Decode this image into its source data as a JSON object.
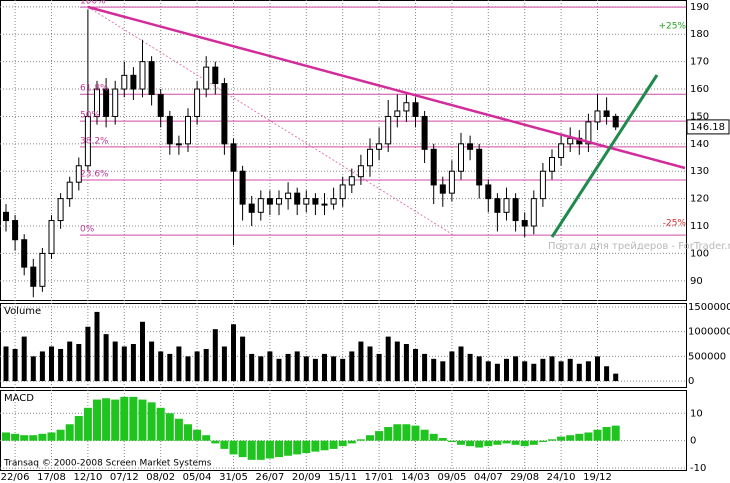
{
  "chart_data": {
    "type": "candlestick",
    "categories": [
      null,
      "22/06",
      null,
      null,
      null,
      "17/08",
      null,
      null,
      null,
      "12/10",
      null,
      null,
      null,
      "07/12",
      null,
      null,
      null,
      "08/02",
      null,
      null,
      null,
      "05/04",
      null,
      null,
      null,
      "31/05",
      null,
      null,
      null,
      "26/07",
      null,
      null,
      null,
      "20/09",
      null,
      null,
      null,
      "15/11",
      null,
      null,
      null,
      "17/01",
      null,
      null,
      null,
      "14/03",
      null,
      null,
      null,
      "09/05",
      null,
      null,
      null,
      "04/07",
      null,
      null,
      null,
      "29/08",
      null,
      null,
      null,
      "24/10",
      null,
      null,
      null,
      "19/12",
      null,
      null
    ],
    "open": [
      115,
      112,
      105,
      95,
      88,
      100,
      112,
      120,
      126,
      132,
      150,
      160,
      150,
      160,
      165,
      160,
      170,
      158,
      150,
      140,
      140,
      150,
      160,
      168,
      162,
      140,
      130,
      118,
      115,
      120,
      118,
      120,
      122,
      118,
      120,
      118,
      118,
      120,
      125,
      128,
      132,
      138,
      140,
      150,
      152,
      155,
      150,
      138,
      125,
      122,
      130,
      140,
      138,
      125,
      120,
      115,
      120,
      112,
      110,
      120,
      130,
      135,
      140,
      142,
      140,
      148,
      152,
      150
    ],
    "high": [
      118,
      114,
      107,
      98,
      102,
      114,
      122,
      128,
      135,
      189,
      163,
      164,
      163,
      170,
      168,
      178,
      172,
      160,
      152,
      143,
      153,
      163,
      172,
      170,
      164,
      142,
      132,
      121,
      123,
      123,
      123,
      126,
      124,
      123,
      122,
      122,
      124,
      128,
      131,
      136,
      142,
      146,
      156,
      158,
      158,
      157,
      152,
      140,
      128,
      134,
      144,
      143,
      140,
      127,
      122,
      124,
      122,
      115,
      123,
      133,
      138,
      143,
      146,
      145,
      151,
      158,
      157,
      151
    ],
    "low": [
      108,
      101,
      92,
      84,
      86,
      98,
      109,
      117,
      123,
      130,
      147,
      146,
      147,
      157,
      156,
      157,
      154,
      146,
      136,
      136,
      137,
      147,
      157,
      158,
      136,
      103,
      112,
      110,
      112,
      114,
      114,
      116,
      114,
      115,
      114,
      114,
      116,
      117,
      122,
      125,
      128,
      134,
      137,
      146,
      148,
      146,
      133,
      118,
      117,
      119,
      127,
      134,
      120,
      115,
      108,
      112,
      108,
      106,
      107,
      117,
      127,
      132,
      137,
      136,
      137,
      145,
      147,
      145
    ],
    "close": [
      112,
      105,
      95,
      88,
      100,
      112,
      120,
      126,
      132,
      150,
      160,
      150,
      160,
      165,
      160,
      170,
      158,
      150,
      140,
      140,
      150,
      160,
      168,
      162,
      140,
      130,
      118,
      115,
      120,
      118,
      120,
      122,
      118,
      120,
      118,
      118,
      120,
      125,
      128,
      132,
      138,
      140,
      150,
      152,
      155,
      150,
      138,
      125,
      122,
      130,
      140,
      138,
      125,
      120,
      115,
      120,
      112,
      110,
      120,
      130,
      135,
      140,
      142,
      140,
      148,
      152,
      150,
      146.18
    ],
    "ylim": [
      83,
      192.5
    ],
    "yticks": [
      90,
      100,
      110,
      120,
      130,
      140,
      150,
      160,
      170,
      180,
      190
    ],
    "last_price": 146.18,
    "fib_levels": [
      {
        "label": "100%",
        "price": 189.9
      },
      {
        "label": "61.8%",
        "price": 158.1
      },
      {
        "label": "50%",
        "price": 148.3
      },
      {
        "label": "38.2%",
        "price": 138.9
      },
      {
        "label": "23.6%",
        "price": 126.8
      },
      {
        "label": "0%",
        "price": 106.7
      }
    ],
    "annotations": [
      "+25%",
      "-25%",
      "Портал для трейдеров - ForTrader.ru"
    ],
    "volume": {
      "title": "Volume",
      "values": [
        700000,
        650000,
        900000,
        500000,
        600000,
        700000,
        650000,
        800000,
        750000,
        1100000,
        1400000,
        950000,
        800000,
        700000,
        750000,
        1200000,
        800000,
        600000,
        550000,
        700000,
        500000,
        600000,
        650000,
        1050000,
        700000,
        1150000,
        900000,
        550000,
        500000,
        600000,
        450000,
        550000,
        600000,
        500000,
        450000,
        550000,
        500000,
        450000,
        600000,
        800000,
        700000,
        550000,
        900000,
        800000,
        750000,
        650000,
        550000,
        450000,
        400000,
        600000,
        700000,
        550000,
        500000,
        400000,
        350000,
        450000,
        500000,
        400000,
        350000,
        450000,
        500000,
        400000,
        450000,
        350000,
        400000,
        500000,
        300000,
        150000
      ],
      "ylim": [
        -140000,
        1580000
      ],
      "yticks": [
        0,
        500000,
        1000000,
        1500000
      ]
    },
    "macd": {
      "title": "MACD",
      "color": "#1fc41f",
      "values": [
        3,
        2.5,
        2,
        2,
        2.5,
        3,
        4,
        6,
        9,
        12,
        15,
        15.5,
        15,
        16,
        16,
        15,
        14,
        12,
        10,
        8,
        6,
        4,
        2,
        -1,
        -3,
        -5,
        -6,
        -7,
        -7,
        -6.5,
        -6,
        -5.5,
        -5,
        -4.5,
        -4,
        -3.5,
        -3,
        -2,
        -1,
        0.5,
        2,
        3.5,
        5,
        6,
        6,
        5.5,
        4,
        2.5,
        1,
        -0.5,
        -1.5,
        -2,
        -2.5,
        -2,
        -1.5,
        -1,
        -1.5,
        -2,
        -1.5,
        -0.5,
        0.5,
        1.5,
        2,
        2.5,
        3,
        4,
        5,
        5.5
      ],
      "ylim": [
        -10.7,
        18.5
      ],
      "yticks": [
        -10,
        0,
        10
      ]
    },
    "footer": "Transaq © 2000-2008 Screen Market Systems"
  }
}
